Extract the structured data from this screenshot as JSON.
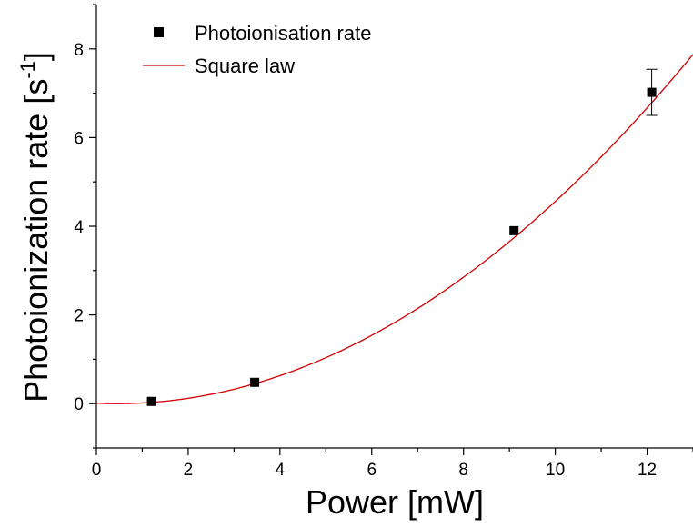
{
  "chart_data": {
    "type": "scatter",
    "title": "",
    "xlabel": "Power [mW]",
    "ylabel": {
      "main": "Photoionization rate [s",
      "superscript": "-1",
      "close": "]"
    },
    "xlim": [
      0,
      13
    ],
    "ylim": [
      -1,
      9
    ],
    "x_ticks": [
      0,
      2,
      4,
      6,
      8,
      10,
      12
    ],
    "y_ticks": [
      0,
      2,
      4,
      6,
      8
    ],
    "grid": false,
    "legend_position": "top-left",
    "series": [
      {
        "name": "Photoionisation rate",
        "kind": "scatter",
        "marker": "square",
        "color": "#000000",
        "x": [
          1.2,
          3.45,
          9.1,
          12.1
        ],
        "y": [
          0.05,
          0.48,
          3.9,
          7.02
        ],
        "yerr": [
          0.03,
          0.04,
          0.06,
          0.52
        ]
      },
      {
        "name": "Square law",
        "kind": "line",
        "color": "#d00000",
        "fit": {
          "form": "a*(x - b)^2",
          "a": 0.05,
          "b": 0.45
        }
      }
    ]
  }
}
